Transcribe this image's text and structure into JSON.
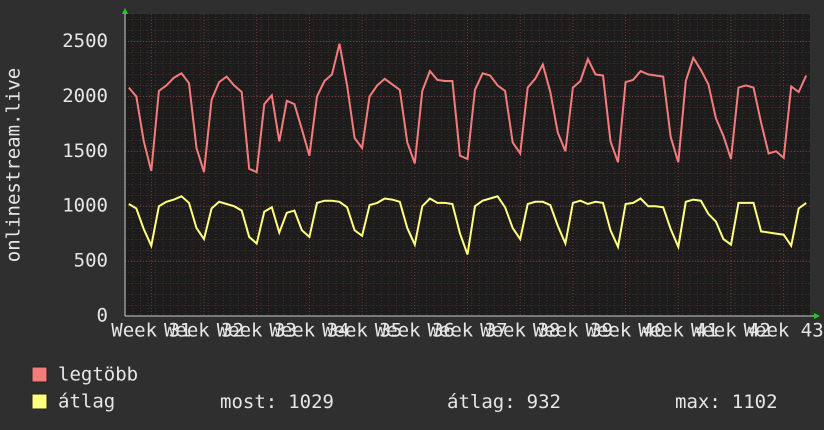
{
  "chart_data": {
    "type": "line",
    "y_label": "onlinestream.live",
    "xlim": [
      0,
      91
    ],
    "xticks": [
      {
        "value": 3.5,
        "label": "Week 31"
      },
      {
        "value": 10.5,
        "label": "Week 32"
      },
      {
        "value": 17.5,
        "label": "Week 33"
      },
      {
        "value": 24.5,
        "label": "Week 34"
      },
      {
        "value": 31.5,
        "label": "Week 35"
      },
      {
        "value": 38.5,
        "label": "Week 36"
      },
      {
        "value": 45.5,
        "label": "Week 37"
      },
      {
        "value": 52.5,
        "label": "Week 38"
      },
      {
        "value": 59.5,
        "label": "Week 39"
      },
      {
        "value": 66.5,
        "label": "Week 40"
      },
      {
        "value": 73.5,
        "label": "Week 41"
      },
      {
        "value": 80.5,
        "label": "Week 42"
      },
      {
        "value": 87.5,
        "label": "Week 43"
      }
    ],
    "ylim": [
      0,
      2750
    ],
    "yticks": [
      0,
      500,
      1000,
      1500,
      2000,
      2500
    ],
    "grid": true,
    "series": [
      {
        "name": "legtöbb",
        "color": "#f47c7c",
        "values": [
          2080,
          2000,
          1590,
          1320,
          2050,
          2100,
          2170,
          2210,
          2120,
          1530,
          1310,
          1970,
          2130,
          2180,
          2100,
          2040,
          1340,
          1310,
          1930,
          2010,
          1590,
          1960,
          1930,
          1700,
          1460,
          2000,
          2140,
          2200,
          2480,
          2100,
          1620,
          1530,
          2000,
          2100,
          2160,
          2110,
          2060,
          1580,
          1390,
          2050,
          2230,
          2150,
          2140,
          2140,
          1460,
          1430,
          2060,
          2210,
          2190,
          2100,
          2050,
          1580,
          1480,
          2080,
          2160,
          2290,
          2040,
          1670,
          1500,
          2080,
          2140,
          2340,
          2200,
          2190,
          1590,
          1400,
          2130,
          2150,
          2230,
          2200,
          2190,
          2180,
          1630,
          1400,
          2140,
          2350,
          2240,
          2110,
          1800,
          1640,
          1430,
          2080,
          2100,
          2080,
          1760,
          1480,
          1500,
          1440,
          2090,
          2040,
          2190
        ]
      },
      {
        "name": "átlag",
        "color": "#ffff80",
        "values": [
          1020,
          980,
          790,
          640,
          1000,
          1040,
          1060,
          1090,
          1030,
          800,
          700,
          980,
          1040,
          1020,
          1000,
          960,
          720,
          660,
          950,
          990,
          760,
          940,
          960,
          780,
          720,
          1030,
          1050,
          1050,
          1040,
          990,
          780,
          730,
          1010,
          1030,
          1070,
          1060,
          1040,
          800,
          650,
          1000,
          1070,
          1030,
          1030,
          1020,
          750,
          560,
          1000,
          1050,
          1070,
          1090,
          990,
          800,
          700,
          1020,
          1040,
          1040,
          1010,
          820,
          660,
          1030,
          1050,
          1020,
          1040,
          1030,
          780,
          630,
          1020,
          1030,
          1070,
          1000,
          1000,
          990,
          790,
          630,
          1040,
          1060,
          1050,
          930,
          860,
          700,
          650,
          1030,
          1030,
          1030,
          770,
          760,
          750,
          740,
          640,
          980,
          1030
        ]
      }
    ],
    "stats": [
      {
        "label": "most:",
        "value": 1029
      },
      {
        "label": "átlag:",
        "value": 932
      },
      {
        "label": "max:",
        "value": 1102
      }
    ]
  }
}
